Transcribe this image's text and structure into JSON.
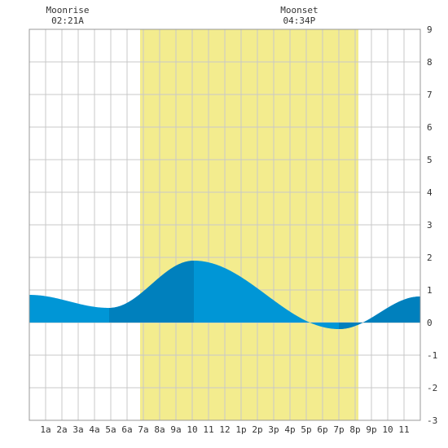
{
  "chart_data": {
    "type": "area",
    "title": "",
    "xlabel": "",
    "ylabel": "",
    "xlim": [
      0,
      24
    ],
    "ylim": [
      -3,
      9
    ],
    "grid": true,
    "x_ticks": [
      "1a",
      "2a",
      "3a",
      "4a",
      "5a",
      "6a",
      "7a",
      "8a",
      "9a",
      "10",
      "11",
      "12",
      "1p",
      "2p",
      "3p",
      "4p",
      "5p",
      "6p",
      "7p",
      "8p",
      "9p",
      "10",
      "11"
    ],
    "y_ticks": [
      -3,
      -2,
      -1,
      0,
      1,
      2,
      3,
      4,
      5,
      6,
      7,
      8,
      9
    ],
    "daylight": {
      "start_hour": 6.8,
      "end_hour": 20.2
    },
    "moon_events": [
      {
        "label": "Moonrise",
        "time": "02:21A",
        "hour": 2.35
      },
      {
        "label": "Moonset",
        "time": "04:34P",
        "hour": 16.57
      }
    ],
    "extremes": [
      {
        "hour": 0.0,
        "height": 0.85
      },
      {
        "hour": 4.9,
        "height": 0.45
      },
      {
        "hour": 10.1,
        "height": 1.9
      },
      {
        "hour": 19.0,
        "height": -0.2
      },
      {
        "hour": 24.0,
        "height": 0.8
      }
    ],
    "dark_bands": [
      [
        4.9,
        10.1
      ],
      [
        19.0,
        24.0
      ]
    ],
    "colors": {
      "daylight": "#f3ec8e",
      "tide": "#0096d6",
      "tide_dark": "#0080bd",
      "grid": "#c8c8c8",
      "frame": "#999999"
    }
  }
}
